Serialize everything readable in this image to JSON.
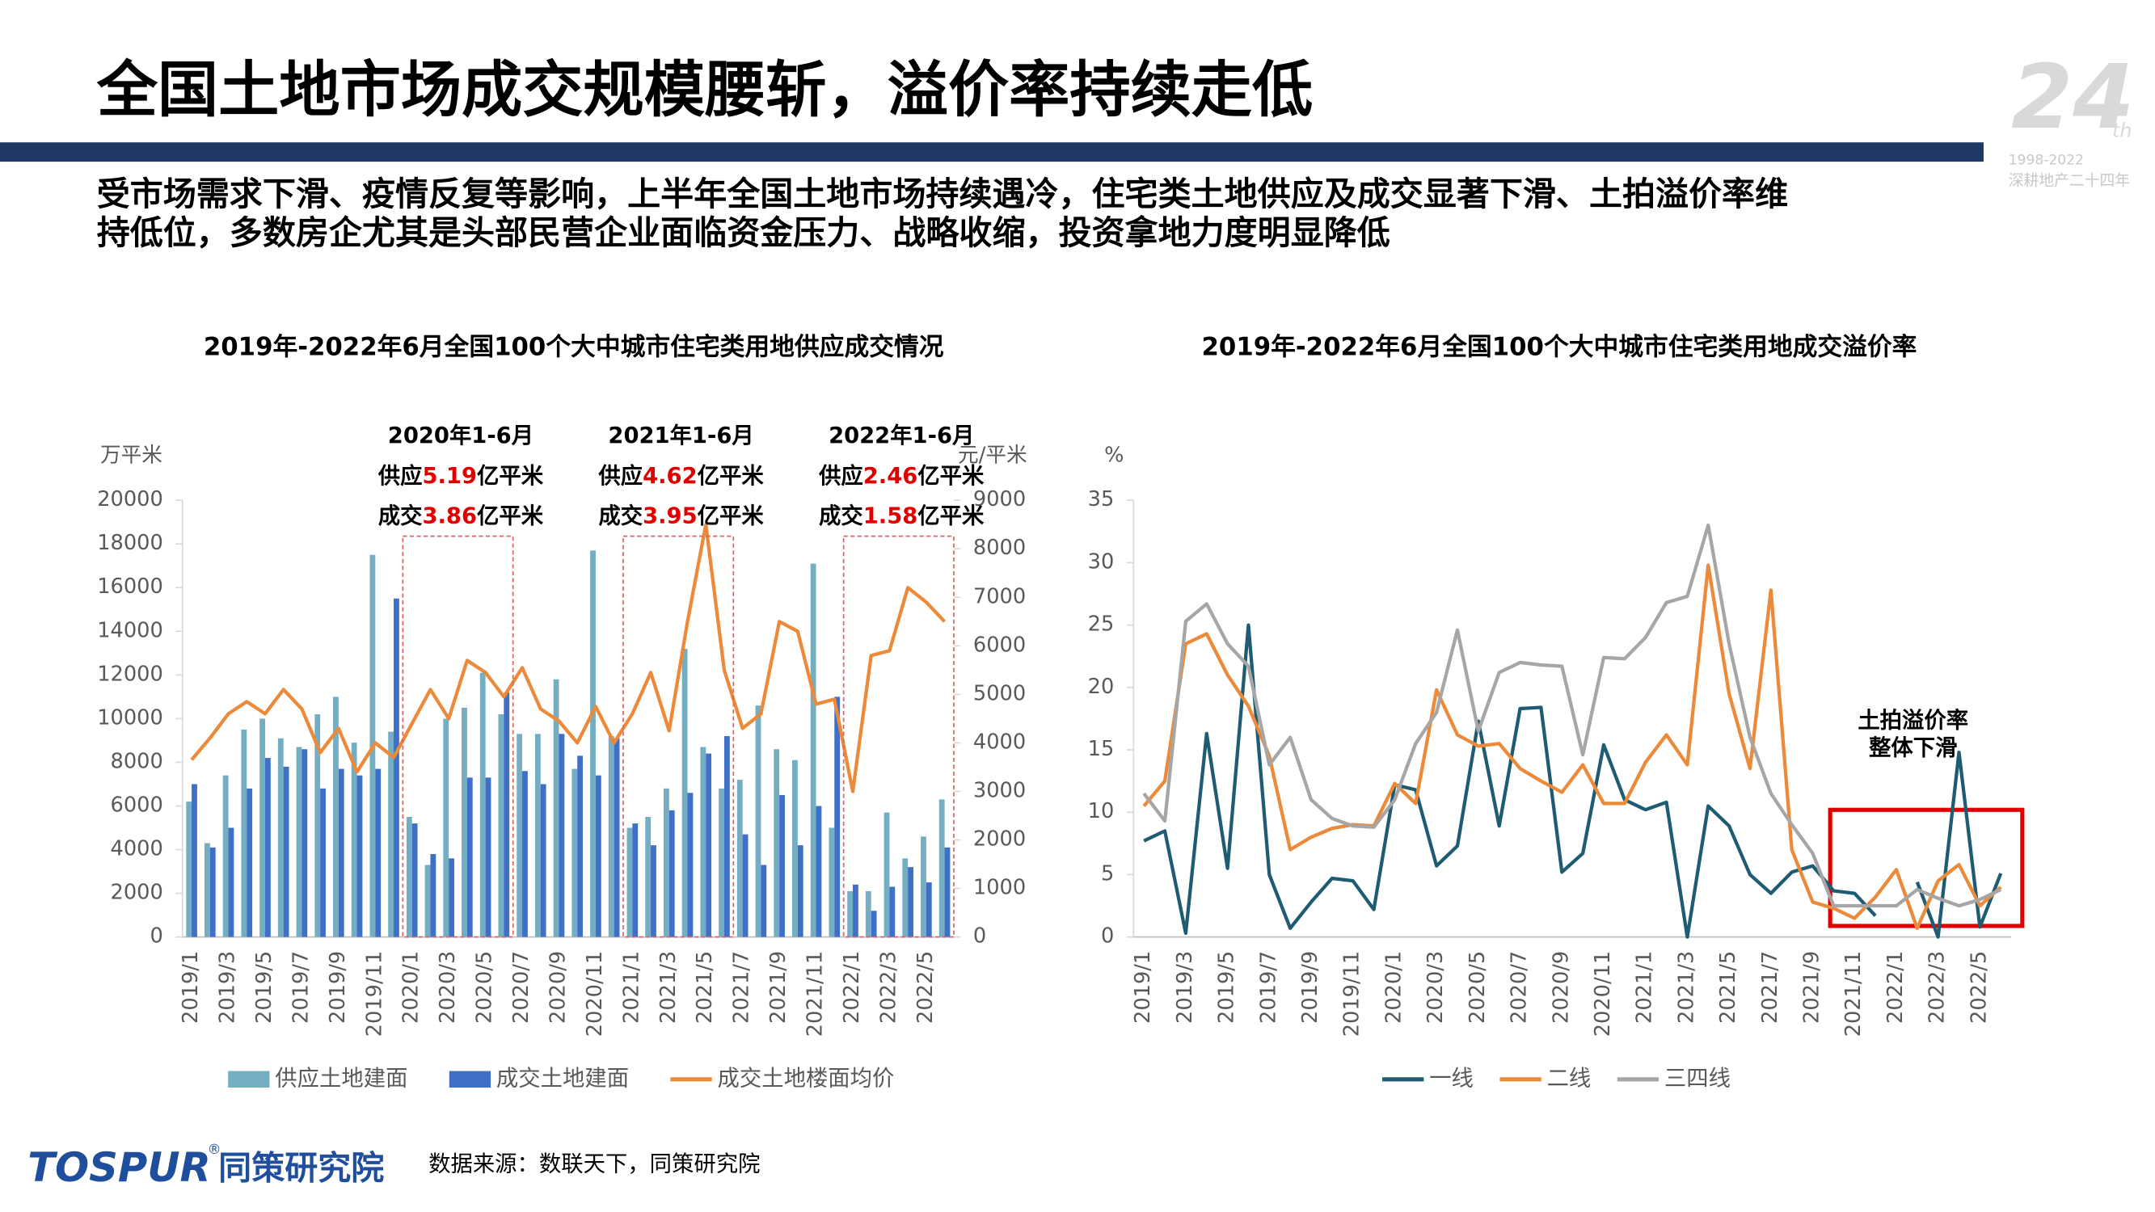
{
  "header": {
    "title": "全国土地市场成交规模腰斩，溢价率持续走低",
    "subtitle": [
      "受市场需求下滑、疫情反复等影响，上半年全国土地市场持续遇冷，住宅类土地供应及成交显著下滑、土拍溢价率维",
      "持低位，多数房企尤其是头部民营企业面临资金压力、战略收缩，投资拿地力度明显降低"
    ],
    "watermark": [
      "24",
      "th",
      "1998-2022",
      "深耕地产二十四年"
    ]
  },
  "footer": {
    "logo": "TOSPUR",
    "logo_mark": "®",
    "logo_text": "同策研究院",
    "source": "数据来源：数联天下，同策研究院"
  },
  "chart_data": [
    {
      "type": "bar",
      "title": "2019年-2022年6月全国100个大中城市住宅类用地供应成交情况",
      "y_label": "万平米",
      "y2_label": "元/平米",
      "categories": [
        "2019/1",
        null,
        "2019/3",
        null,
        "2019/5",
        null,
        "2019/7",
        null,
        "2019/9",
        null,
        "2019/11",
        null,
        "2020/1",
        null,
        "2020/3",
        null,
        "2020/5",
        null,
        "2020/7",
        null,
        "2020/9",
        null,
        "2020/11",
        null,
        "2021/1",
        null,
        "2021/3",
        null,
        "2021/5",
        null,
        "2021/7",
        null,
        "2021/9",
        null,
        "2021/11",
        null,
        "2022/1",
        null,
        "2022/3",
        null,
        "2022/5",
        null
      ],
      "series": [
        {
          "name": "供应土地建面",
          "color": "#74aec3",
          "values": [
            6200,
            4300,
            7400,
            9500,
            10000,
            9100,
            8700,
            10200,
            11000,
            8900,
            17500,
            9400,
            5500,
            3300,
            10000,
            10500,
            12100,
            10200,
            9300,
            9300,
            11800,
            7700,
            17700,
            9200,
            5000,
            5500,
            6800,
            13200,
            8700,
            6800,
            7200,
            10600,
            8600,
            8100,
            17100,
            5000,
            2100,
            2100,
            5700,
            3600,
            4600,
            6300
          ]
        },
        {
          "name": "成交土地建面",
          "color": "#3f6fc6",
          "values": [
            7000,
            4100,
            5000,
            6800,
            8200,
            7800,
            8600,
            6800,
            7700,
            7400,
            7700,
            15500,
            5200,
            3800,
            3600,
            7300,
            7300,
            11200,
            7600,
            7000,
            9300,
            8300,
            7400,
            9100,
            5200,
            4200,
            5800,
            6600,
            8400,
            9200,
            4700,
            3300,
            6500,
            4200,
            6000,
            11000,
            2400,
            1200,
            2300,
            3200,
            2500,
            4100
          ]
        },
        {
          "name": "成交土地楼面均价",
          "color": "#ec8a3a",
          "type": "line",
          "axis": "y2",
          "values": [
            3650,
            4100,
            4600,
            4850,
            4600,
            5100,
            4700,
            3800,
            4300,
            3400,
            4000,
            3700,
            4400,
            5100,
            4500,
            5700,
            5450,
            4950,
            5550,
            4700,
            4450,
            4000,
            4750,
            4000,
            4600,
            5450,
            4250,
            6500,
            8500,
            5500,
            4300,
            4600,
            6500,
            6300,
            4800,
            4900,
            3000,
            5800,
            5900,
            7200,
            6900,
            6500
          ]
        }
      ],
      "ylim": [
        0,
        20000
      ],
      "yticks": [
        0,
        2000,
        4000,
        6000,
        8000,
        10000,
        12000,
        14000,
        16000,
        18000,
        20000
      ],
      "y2lim": [
        0,
        9000
      ],
      "y2ticks": [
        0,
        1000,
        2000,
        3000,
        4000,
        5000,
        6000,
        7000,
        8000,
        9000
      ],
      "annotation_labels": {
        "supply": "供应",
        "deal": "成交",
        "unit": "亿平米"
      },
      "annotations": [
        {
          "period": "2020年1-6月",
          "supply": 5.19,
          "deal": 3.86
        },
        {
          "period": "2021年1-6月",
          "supply": 4.62,
          "deal": 3.95
        },
        {
          "period": "2022年1-6月",
          "supply": 2.46,
          "deal": 1.58
        }
      ]
    },
    {
      "type": "line",
      "title": "2019年-2022年6月全国100个大中城市住宅类用地成交溢价率",
      "y_label": "%",
      "categories": [
        "2019/1",
        null,
        "2019/3",
        null,
        "2019/5",
        null,
        "2019/7",
        null,
        "2019/9",
        null,
        "2019/11",
        null,
        "2020/1",
        null,
        "2020/3",
        null,
        "2020/5",
        null,
        "2020/7",
        null,
        "2020/9",
        null,
        "2020/11",
        null,
        "2021/1",
        null,
        "2021/3",
        null,
        "2021/5",
        null,
        "2021/7",
        null,
        "2021/9",
        null,
        "2021/11",
        null,
        "2022/1",
        null,
        "2022/3",
        null,
        "2022/5",
        null
      ],
      "series": [
        {
          "name": "一线",
          "color": "#1f5c73",
          "values": [
            7.7,
            8.5,
            0.3,
            16.3,
            5.5,
            25,
            5,
            0.7,
            2.8,
            4.7,
            4.5,
            2.2,
            12.2,
            11.8,
            5.7,
            7.3,
            17.3,
            8.9,
            18.3,
            18.4,
            5.2,
            6.7,
            15.4,
            11,
            10.2,
            10.8,
            0,
            10.5,
            8.9,
            5,
            3.5,
            5.2,
            5.7,
            3.7,
            3.5,
            1.7,
            null,
            4.4,
            0,
            14.8,
            0.8,
            5.1
          ]
        },
        {
          "name": "二线",
          "color": "#ec8a3a",
          "values": [
            10.5,
            12.5,
            23.5,
            24.3,
            21,
            18.5,
            14.5,
            7,
            8,
            8.7,
            9,
            8.9,
            12.3,
            10.7,
            19.8,
            16.2,
            15.3,
            15.5,
            13.5,
            12.5,
            11.6,
            13.8,
            10.7,
            10.7,
            14,
            16.2,
            13.8,
            29.8,
            19.5,
            13.5,
            27.8,
            7,
            2.8,
            2.3,
            1.5,
            3.2,
            5.4,
            0.7,
            4.5,
            5.8,
            2.5,
            4
          ]
        },
        {
          "name": "三四线",
          "color": "#a6a6a6",
          "values": [
            11.5,
            9.3,
            25.3,
            26.7,
            23.5,
            21.7,
            13.8,
            16,
            11,
            9.5,
            8.9,
            8.8,
            11,
            15.5,
            18,
            24.6,
            16.5,
            21.2,
            22,
            21.8,
            21.7,
            14.6,
            22.4,
            22.3,
            24,
            26.8,
            27.3,
            33,
            23.5,
            16,
            11.5,
            9,
            6.7,
            2.5,
            2.5,
            2.5,
            2.5,
            3.8,
            3.1,
            2.5,
            3,
            3.8
          ]
        }
      ],
      "ylim": [
        0,
        35
      ],
      "yticks": [
        0,
        5,
        10,
        15,
        20,
        25,
        30,
        35
      ],
      "annotation": [
        "土拍溢价率",
        "整体下滑"
      ]
    }
  ]
}
